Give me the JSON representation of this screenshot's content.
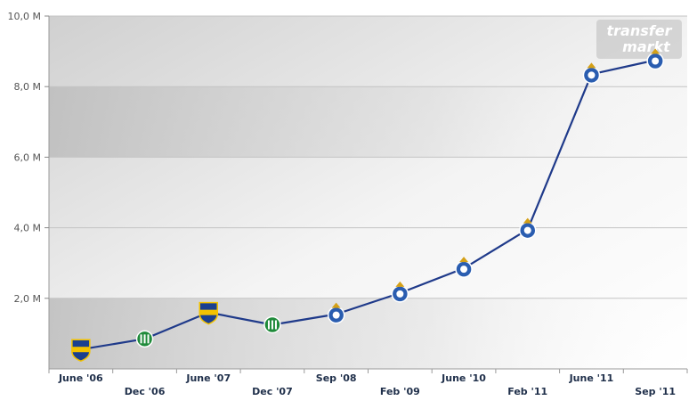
{
  "chart_data": {
    "type": "line",
    "title": "",
    "xlabel": "",
    "ylabel": "",
    "ylim": [
      0,
      10
    ],
    "y_ticks": [
      2,
      4,
      6,
      8,
      10
    ],
    "y_tick_labels": [
      "2,0 M",
      "4,0 M",
      "6,0 M",
      "8,0 M",
      "10,0 M"
    ],
    "grid": true,
    "legend": "none",
    "watermark_lines": [
      "transfer",
      "markt"
    ],
    "categories": [
      "June '06",
      "Dec '06",
      "June '07",
      "Dec '07",
      "Sep '08",
      "Feb '09",
      "June '10",
      "Feb '11",
      "June '11",
      "Sep '11"
    ],
    "series": [
      {
        "color": "#1f3a8a",
        "values": [
          0.55,
          0.85,
          1.6,
          1.25,
          1.55,
          2.15,
          2.85,
          3.95,
          8.35,
          8.75
        ],
        "club_badges": [
          "boca-juniors",
          "saint-etienne",
          "boca-juniors",
          "saint-etienne",
          "fc-porto",
          "fc-porto",
          "fc-porto",
          "fc-porto",
          "fc-porto",
          "fc-porto"
        ]
      }
    ]
  }
}
